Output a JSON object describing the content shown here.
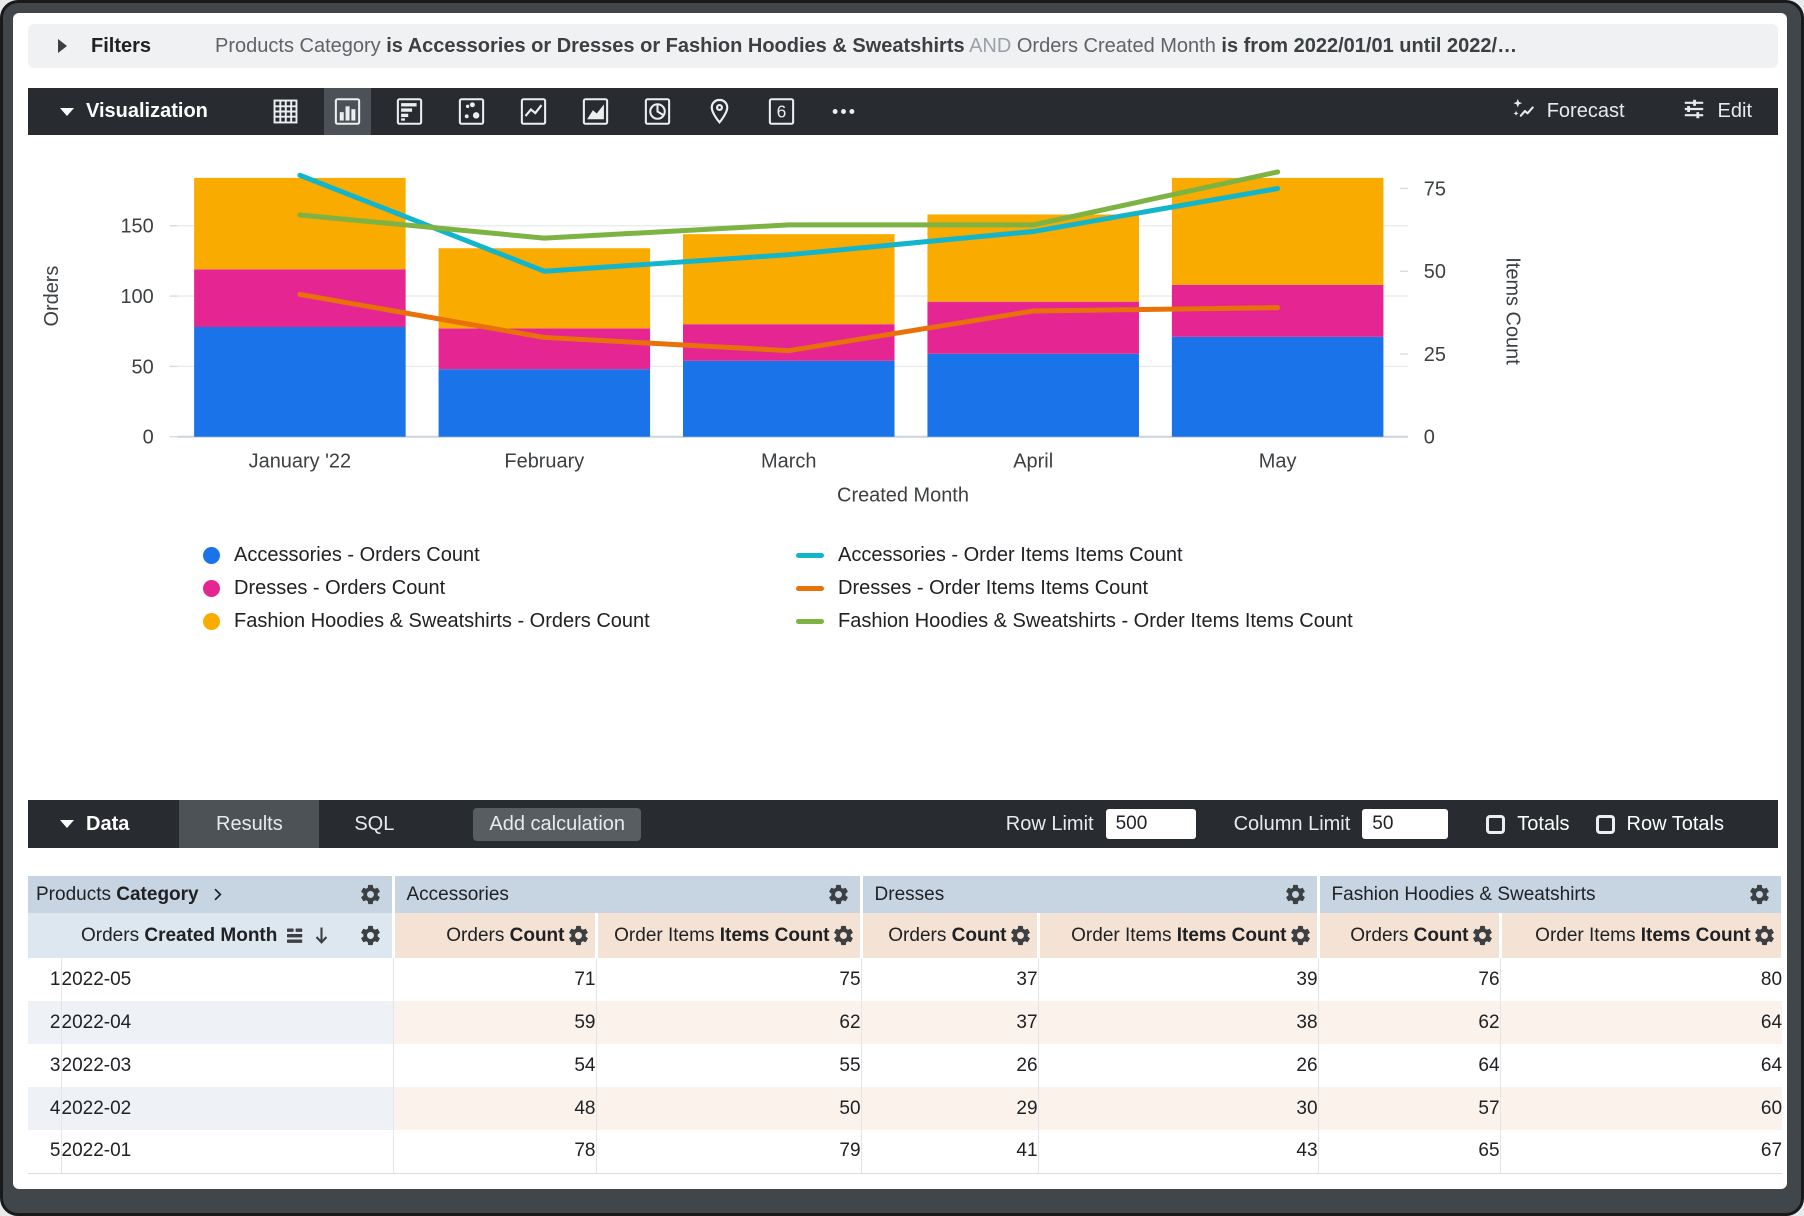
{
  "filters": {
    "label": "Filters",
    "summary_parts": [
      {
        "text": "Products Category ",
        "style": "regular"
      },
      {
        "text": "is Accessories or Dresses or Fashion Hoodies & Sweatshirts",
        "style": "bold"
      },
      {
        "text": " AND ",
        "style": "muted"
      },
      {
        "text": "Orders Created Month ",
        "style": "regular"
      },
      {
        "text": "is from 2022/01/01 until 2022/…",
        "style": "bold"
      }
    ]
  },
  "visualization": {
    "title": "Visualization",
    "chart_type_icons": [
      {
        "name": "table-chart",
        "selected": false
      },
      {
        "name": "column-chart",
        "selected": true
      },
      {
        "name": "bar-chart",
        "selected": false
      },
      {
        "name": "scatter-chart",
        "selected": false
      },
      {
        "name": "line-chart",
        "selected": false
      },
      {
        "name": "area-chart",
        "selected": false
      },
      {
        "name": "pie-chart",
        "selected": false
      },
      {
        "name": "map-chart",
        "selected": false
      },
      {
        "name": "single-value-chart",
        "selected": false
      },
      {
        "name": "more-options",
        "selected": false
      }
    ],
    "single_value_glyph": "6",
    "forecast_label": "Forecast",
    "edit_label": "Edit"
  },
  "chart_data": {
    "type": "combo: stacked bar + line, dual axis",
    "x_categories": [
      "January '22",
      "February",
      "March",
      "April",
      "May"
    ],
    "xlabel": "Created Month",
    "stacked": true,
    "grid": true,
    "bar_series": [
      {
        "name": "Accessories - Orders Count",
        "color": "#1a73e8",
        "values": [
          78,
          48,
          54,
          59,
          71
        ]
      },
      {
        "name": "Dresses - Orders Count",
        "color": "#e52592",
        "values": [
          41,
          29,
          26,
          37,
          37
        ]
      },
      {
        "name": "Fashion Hoodies & Sweatshirts - Orders Count",
        "color": "#f9ab00",
        "values": [
          65,
          57,
          64,
          62,
          76
        ]
      }
    ],
    "line_series": [
      {
        "name": "Accessories - Order Items Items Count",
        "color": "#12b5cb",
        "values": [
          79,
          50,
          55,
          62,
          75
        ]
      },
      {
        "name": "Dresses - Order Items Items Count",
        "color": "#e8710a",
        "values": [
          43,
          30,
          26,
          38,
          39
        ]
      },
      {
        "name": "Fashion Hoodies & Sweatshirts - Order Items Items Count",
        "color": "#7cb342",
        "values": [
          67,
          60,
          64,
          64,
          80
        ]
      }
    ],
    "left_axis": {
      "title": "Orders",
      "ticks": [
        0,
        50,
        100,
        150
      ],
      "max": 200
    },
    "right_axis": {
      "title": "Items Count",
      "ticks": [
        0,
        25,
        50,
        75
      ],
      "max": 85
    },
    "legend_position": "bottom"
  },
  "data_panel": {
    "title": "Data",
    "tabs": [
      {
        "label": "Results",
        "selected": true
      },
      {
        "label": "SQL",
        "selected": false
      }
    ],
    "add_calculation_label": "Add calculation",
    "row_limit_label": "Row Limit",
    "row_limit_value": "500",
    "column_limit_label": "Column Limit",
    "column_limit_value": "50",
    "totals_label": "Totals",
    "totals_checked": false,
    "row_totals_label": "Row Totals",
    "row_totals_checked": false
  },
  "table": {
    "groups": [
      {
        "parts": [
          {
            "text": "Products ",
            "bold": false
          },
          {
            "text": "Category",
            "bold": true
          }
        ],
        "chevron": true
      },
      {
        "parts": [
          {
            "text": "Accessories",
            "bold": false
          }
        ],
        "chevron": false
      },
      {
        "parts": [
          {
            "text": "Dresses",
            "bold": false
          }
        ],
        "chevron": false
      },
      {
        "parts": [
          {
            "text": "Fashion Hoodies & Sweatshirts",
            "bold": false
          }
        ],
        "chevron": false
      }
    ],
    "dimension_header": {
      "prefix": "Orders ",
      "bold": "Created Month"
    },
    "measure_headers": [
      {
        "prefix": "Orders ",
        "bold": "Count"
      },
      {
        "prefix": "Order Items ",
        "bold": "Items Count"
      },
      {
        "prefix": "Orders ",
        "bold": "Count"
      },
      {
        "prefix": "Order Items ",
        "bold": "Items Count"
      },
      {
        "prefix": "Orders ",
        "bold": "Count"
      },
      {
        "prefix": "Order Items ",
        "bold": "Items Count"
      }
    ],
    "rows": [
      {
        "num": "1",
        "dimension": "2022-05",
        "values": [
          71,
          75,
          37,
          39,
          76,
          80
        ]
      },
      {
        "num": "2",
        "dimension": "2022-04",
        "values": [
          59,
          62,
          37,
          38,
          62,
          64
        ]
      },
      {
        "num": "3",
        "dimension": "2022-03",
        "values": [
          54,
          55,
          26,
          26,
          64,
          64
        ]
      },
      {
        "num": "4",
        "dimension": "2022-02",
        "values": [
          48,
          50,
          29,
          30,
          57,
          60
        ]
      },
      {
        "num": "5",
        "dimension": "2022-01",
        "values": [
          78,
          79,
          41,
          43,
          65,
          67
        ]
      }
    ]
  }
}
